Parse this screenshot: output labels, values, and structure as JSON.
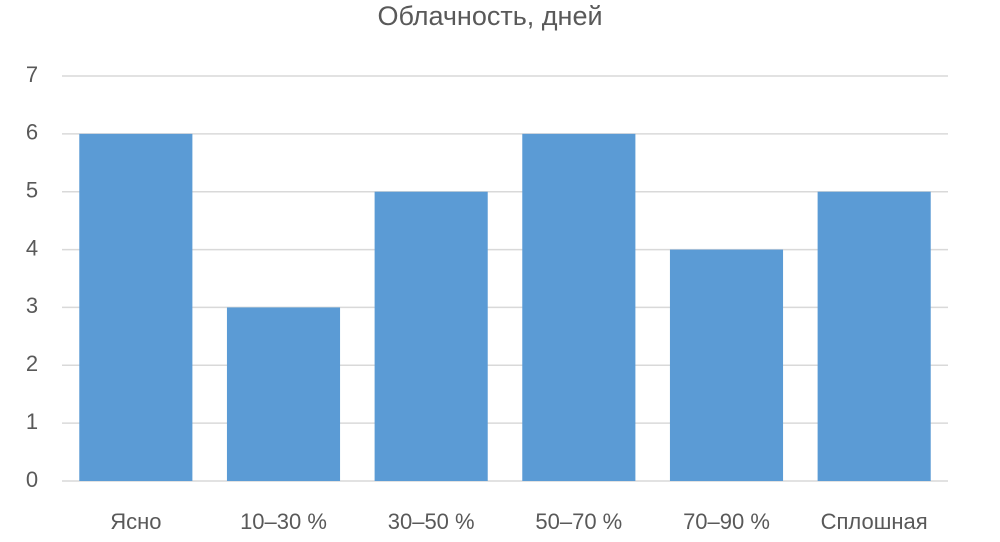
{
  "chart_data": {
    "type": "bar",
    "title": "Облачность, дней",
    "categories": [
      "Ясно",
      "10–30 %",
      "30–50 %",
      "50–70 %",
      "70–90 %",
      "Сплошная"
    ],
    "values": [
      6,
      3,
      5,
      6,
      4,
      5
    ],
    "color": "#5b9bd5",
    "ylim": [
      0,
      7
    ],
    "yticks": [
      0,
      1,
      2,
      3,
      4,
      5,
      6,
      7
    ],
    "grid": true
  }
}
